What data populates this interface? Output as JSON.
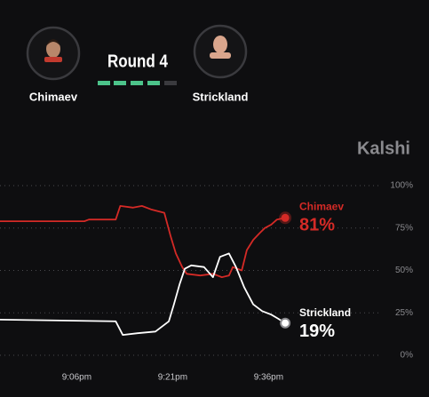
{
  "header": {
    "fighters": [
      {
        "name": "Chimaev"
      },
      {
        "name": "Strickland"
      }
    ],
    "round": "Round 4",
    "brand": "Kalshi"
  },
  "chart_data": {
    "type": "line",
    "xlim": [
      1254,
      1314
    ],
    "xticks": [
      {
        "value": 1266,
        "label": "9:06pm"
      },
      {
        "value": 1281,
        "label": "9:21pm"
      },
      {
        "value": 1296,
        "label": "9:36pm"
      }
    ],
    "ylim": [
      0,
      100
    ],
    "yticks": [
      {
        "value": 100,
        "label": "100%"
      },
      {
        "value": 75,
        "label": "75%"
      },
      {
        "value": 50,
        "label": "50%"
      },
      {
        "value": 25,
        "label": "25%"
      },
      {
        "value": 0,
        "label": "0%"
      }
    ],
    "grid": true,
    "series": [
      {
        "name": "Chimaev",
        "color": "#d42a26",
        "x": [
          1254,
          1267.2,
          1267.9,
          1272.1,
          1272.8,
          1274.8,
          1276.2,
          1277.6,
          1279.7,
          1280.7,
          1281.5,
          1282.5,
          1283.2,
          1285.3,
          1287.3,
          1288.7,
          1289.8,
          1290.4,
          1291.8,
          1292.6,
          1293.6,
          1294.6,
          1295.4,
          1296.4,
          1297.3,
          1298.6
        ],
        "values": [
          79,
          79,
          80,
          80,
          88,
          87,
          88,
          86,
          84,
          70,
          60,
          52,
          48,
          47,
          48,
          46,
          47,
          52,
          50,
          62,
          68,
          72,
          75,
          77,
          80,
          81
        ],
        "value_labels": [
          null,
          null,
          null,
          null,
          null,
          null,
          null,
          null,
          null,
          null,
          null,
          null,
          null,
          null,
          null,
          null,
          null,
          null,
          null,
          null,
          null,
          null,
          null,
          null,
          null,
          "81%"
        ]
      },
      {
        "name": "Strickland",
        "color": "#ffffff",
        "x": [
          1254,
          1272.1,
          1273.2,
          1275.5,
          1278.3,
          1280.4,
          1281.2,
          1282.1,
          1282.9,
          1283.9,
          1285.9,
          1287.3,
          1288.4,
          1289.8,
          1290.9,
          1292.2,
          1293.6,
          1295,
          1296.4,
          1297.3,
          1298.6
        ],
        "values": [
          21,
          20,
          12,
          13,
          14,
          20,
          30,
          42,
          51,
          53,
          52,
          46,
          58,
          60,
          52,
          40,
          30,
          26,
          24,
          22,
          19
        ],
        "value_labels": [
          null,
          null,
          null,
          null,
          null,
          null,
          null,
          null,
          null,
          null,
          null,
          null,
          null,
          null,
          null,
          null,
          null,
          null,
          null,
          null,
          "19%"
        ]
      }
    ]
  }
}
